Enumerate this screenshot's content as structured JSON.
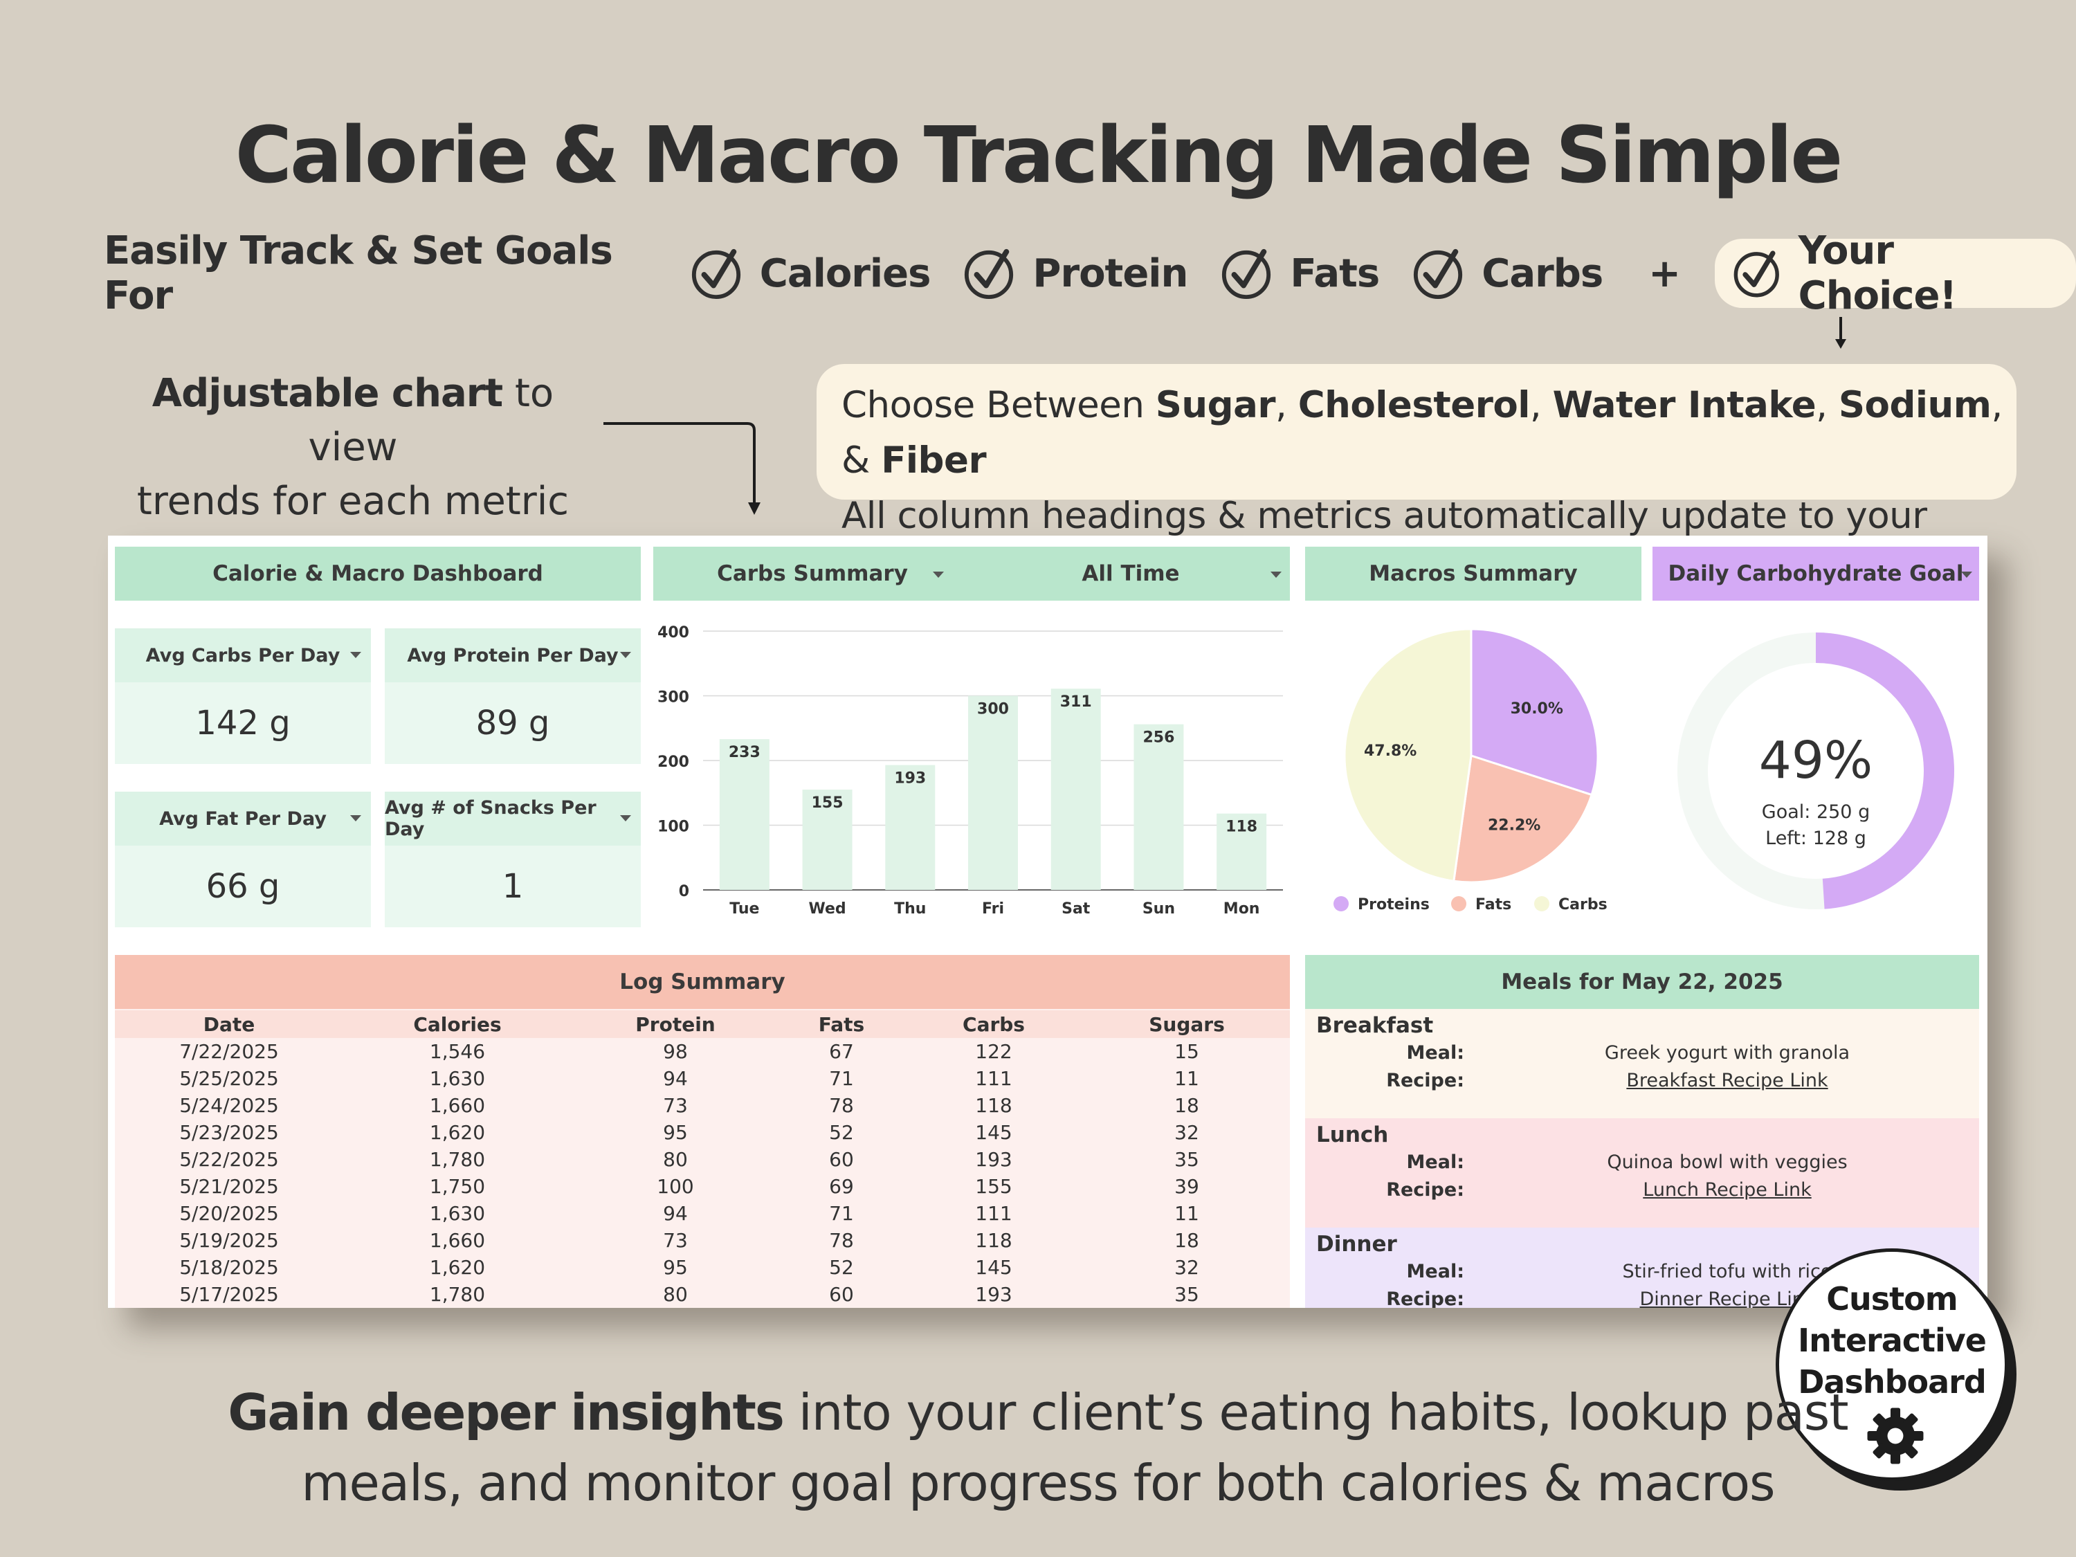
{
  "header": {
    "title": "Calorie & Macro Tracking Made Simple",
    "goals_lead": "Easily Track & Set Goals For",
    "goals": [
      "Calories",
      "Protein",
      "Fats",
      "Carbs"
    ],
    "plus": "+",
    "choice": "Your Choice!"
  },
  "chart_note": {
    "bold": "Adjustable chart",
    "rest": " to view",
    "line2": "trends for each metric"
  },
  "choose_box": {
    "prefix": "Choose Between ",
    "items": [
      "Sugar",
      "Cholesterol",
      "Water Intake",
      "Sodium"
    ],
    "sep": ", ",
    "amp": ", & ",
    "last": "Fiber",
    "line2": "All column headings & metrics automatically update to your choice!"
  },
  "dashboard": {
    "title": "Calorie & Macro Dashboard",
    "stats": [
      {
        "label": "Avg Carbs Per Day",
        "value": "142 g"
      },
      {
        "label": "Avg Protein Per Day",
        "value": "89 g"
      },
      {
        "label": "Avg Fat Per Day",
        "value": "66 g"
      },
      {
        "label": "Avg # of Snacks Per Day",
        "value": "1"
      }
    ],
    "summary_select": "Carbs Summary",
    "period_select": "All Time",
    "macros_title": "Macros Summary",
    "goal_title": "Daily Carbohydrate Goal",
    "goal": {
      "percent": "49%",
      "goal_text": "Goal: 250 g",
      "left_text": "Left: 128 g",
      "fraction": 0.49
    },
    "log": {
      "title": "Log Summary",
      "columns": [
        "Date",
        "Calories",
        "Protein",
        "Fats",
        "Carbs",
        "Sugars"
      ],
      "rows": [
        [
          "7/22/2025",
          "1,546",
          "98",
          "67",
          "122",
          "15"
        ],
        [
          "5/25/2025",
          "1,630",
          "94",
          "71",
          "111",
          "11"
        ],
        [
          "5/24/2025",
          "1,660",
          "73",
          "78",
          "118",
          "18"
        ],
        [
          "5/23/2025",
          "1,620",
          "95",
          "52",
          "145",
          "32"
        ],
        [
          "5/22/2025",
          "1,780",
          "80",
          "60",
          "193",
          "35"
        ],
        [
          "5/21/2025",
          "1,750",
          "100",
          "69",
          "155",
          "39"
        ],
        [
          "5/20/2025",
          "1,630",
          "94",
          "71",
          "111",
          "11"
        ],
        [
          "5/19/2025",
          "1,660",
          "73",
          "78",
          "118",
          "18"
        ],
        [
          "5/18/2025",
          "1,620",
          "95",
          "52",
          "145",
          "32"
        ],
        [
          "5/17/2025",
          "1,780",
          "80",
          "60",
          "193",
          "35"
        ]
      ]
    },
    "meals": {
      "title": "Meals for  May 22, 2025",
      "meal_key": "Meal:",
      "recipe_key": "Recipe:",
      "sections": [
        {
          "name": "Breakfast",
          "meal": "Greek yogurt with granola",
          "recipe": "Breakfast Recipe Link",
          "color": "#fdf5ec"
        },
        {
          "name": "Lunch",
          "meal": "Quinoa bowl with veggies",
          "recipe": "Lunch Recipe Link",
          "color": "#fce1e4"
        },
        {
          "name": "Dinner",
          "meal": "Stir-fried tofu with rice",
          "recipe": "Dinner Recipe Link",
          "color": "#ede4fa"
        }
      ]
    }
  },
  "chart_data": [
    {
      "type": "bar",
      "categories": [
        "Tue",
        "Wed",
        "Thu",
        "Fri",
        "Sat",
        "Sun",
        "Mon"
      ],
      "values": [
        233,
        155,
        193,
        300,
        311,
        256,
        118
      ],
      "ylim": [
        0,
        400
      ],
      "yticks": [
        0,
        100,
        200,
        300,
        400
      ],
      "grid": true,
      "bar_color": "#e0f3e7"
    },
    {
      "type": "pie",
      "labels": [
        "Proteins",
        "Fats",
        "Carbs"
      ],
      "values": [
        30.0,
        22.2,
        47.8
      ],
      "value_labels": [
        "30.0%",
        "22.2%",
        "47.8%"
      ],
      "colors": [
        "#d4aaf5",
        "#f9c1b2",
        "#f5f6d6"
      ],
      "legend": "bottom"
    }
  ],
  "badge": {
    "line1": "Custom",
    "line2": "Interactive",
    "line3": "Dashboard"
  },
  "bottom": {
    "bold": "Gain deeper insights",
    "rest": " into your client’s eating habits, lookup past",
    "line2": "meals, and monitor goal progress for both calories & macros"
  },
  "colors": {
    "background": "#d6cfc3",
    "green_header": "#b9e6cc",
    "purple_header": "#d4aaf5",
    "salmon_header": "#f7c1b2",
    "cream": "#fbf3e2"
  }
}
